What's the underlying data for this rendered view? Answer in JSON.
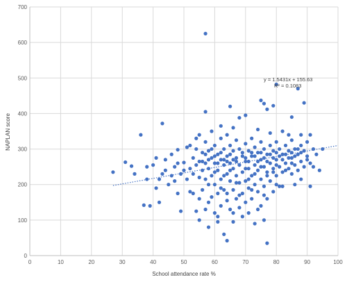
{
  "chart_data": {
    "type": "scatter",
    "title": "",
    "xlabel": "School attendance rate %",
    "ylabel": "NAPLAN score",
    "xlim": [
      0,
      100
    ],
    "ylim": [
      0,
      700
    ],
    "x_ticks": [
      "0",
      "10",
      "20",
      "30",
      "40",
      "50",
      "60",
      "70",
      "80",
      "90",
      "100"
    ],
    "y_ticks": [
      "0",
      "100",
      "200",
      "300",
      "400",
      "500",
      "600",
      "700"
    ],
    "grid": "vertical and horizontal",
    "legend": "none",
    "marker_color": "#4472C4",
    "trendline": {
      "type": "linear",
      "slope": 1.5431,
      "intercept": 155.63,
      "x_range": [
        27,
        100
      ],
      "style": "dotted",
      "equation_label": "y = 1.5431x + 155.63",
      "r2_label": "R² = 0.1083"
    },
    "series": [
      {
        "points": [
          [
            57,
            625
          ],
          [
            80,
            482
          ],
          [
            87,
            470
          ],
          [
            76,
            428
          ],
          [
            89,
            430
          ],
          [
            75,
            437
          ],
          [
            65,
            420
          ],
          [
            57,
            405
          ],
          [
            43,
            372
          ],
          [
            36,
            340
          ],
          [
            79,
            422
          ],
          [
            77,
            412
          ],
          [
            85,
            390
          ],
          [
            68,
            388
          ],
          [
            70,
            395
          ],
          [
            27,
            235
          ],
          [
            31,
            263
          ],
          [
            33,
            252
          ],
          [
            34,
            230
          ],
          [
            37,
            142
          ],
          [
            38,
            215
          ],
          [
            38,
            250
          ],
          [
            39,
            140
          ],
          [
            40,
            255
          ],
          [
            41,
            190
          ],
          [
            42,
            150
          ],
          [
            42,
            215
          ],
          [
            44,
            240
          ],
          [
            44,
            270
          ],
          [
            45,
            200
          ],
          [
            46,
            225
          ],
          [
            46,
            285
          ],
          [
            47,
            250
          ],
          [
            48,
            175
          ],
          [
            48,
            298
          ],
          [
            49,
            230
          ],
          [
            49,
            125
          ],
          [
            50,
            262
          ],
          [
            51,
            215
          ],
          [
            51,
            305
          ],
          [
            52,
            245
          ],
          [
            52,
            180
          ],
          [
            53,
            275
          ],
          [
            53,
            230
          ],
          [
            54,
            300
          ],
          [
            54,
            255
          ],
          [
            54,
            125
          ],
          [
            55,
            340
          ],
          [
            55,
            220
          ],
          [
            55,
            100
          ],
          [
            56,
            290
          ],
          [
            56,
            240
          ],
          [
            56,
            185
          ],
          [
            57,
            320
          ],
          [
            57,
            260
          ],
          [
            57,
            215
          ],
          [
            58,
            295
          ],
          [
            58,
            245
          ],
          [
            58,
            150
          ],
          [
            58,
            80
          ],
          [
            59,
            275
          ],
          [
            59,
            225
          ],
          [
            59,
            350
          ],
          [
            60,
            310
          ],
          [
            60,
            260
          ],
          [
            60,
            200
          ],
          [
            60,
            120
          ],
          [
            61,
            285
          ],
          [
            61,
            240
          ],
          [
            61,
            175
          ],
          [
            61,
            95
          ],
          [
            62,
            330
          ],
          [
            62,
            270
          ],
          [
            62,
            215
          ],
          [
            62,
            140
          ],
          [
            63,
            300
          ],
          [
            63,
            255
          ],
          [
            63,
            185
          ],
          [
            63,
            60
          ],
          [
            64,
            340
          ],
          [
            64,
            280
          ],
          [
            64,
            230
          ],
          [
            64,
            155
          ],
          [
            64,
            42
          ],
          [
            65,
            310
          ],
          [
            65,
            260
          ],
          [
            65,
            210
          ],
          [
            65,
            130
          ],
          [
            66,
            295
          ],
          [
            66,
            245
          ],
          [
            66,
            185
          ],
          [
            66,
            95
          ],
          [
            67,
            325
          ],
          [
            67,
            275
          ],
          [
            67,
            225
          ],
          [
            67,
            160
          ],
          [
            68,
            300
          ],
          [
            68,
            255
          ],
          [
            68,
            205
          ],
          [
            68,
            135
          ],
          [
            69,
            280
          ],
          [
            69,
            235
          ],
          [
            69,
            175
          ],
          [
            70,
            315
          ],
          [
            70,
            265
          ],
          [
            70,
            210
          ],
          [
            70,
            150
          ],
          [
            71,
            295
          ],
          [
            71,
            245
          ],
          [
            71,
            190
          ],
          [
            71,
            120
          ],
          [
            72,
            330
          ],
          [
            72,
            280
          ],
          [
            72,
            225
          ],
          [
            72,
            160
          ],
          [
            73,
            305
          ],
          [
            73,
            255
          ],
          [
            73,
            200
          ],
          [
            73,
            90
          ],
          [
            74,
            290
          ],
          [
            74,
            240
          ],
          [
            74,
            180
          ],
          [
            75,
            320
          ],
          [
            75,
            270
          ],
          [
            75,
            215
          ],
          [
            75,
            140
          ],
          [
            76,
            300
          ],
          [
            76,
            250
          ],
          [
            76,
            195
          ],
          [
            76,
            100
          ],
          [
            77,
            285
          ],
          [
            77,
            235
          ],
          [
            77,
            160
          ],
          [
            77,
            35
          ],
          [
            78,
            310
          ],
          [
            78,
            260
          ],
          [
            78,
            210
          ],
          [
            79,
            295
          ],
          [
            79,
            245
          ],
          [
            79,
            180
          ],
          [
            80,
            320
          ],
          [
            80,
            270
          ],
          [
            80,
            225
          ],
          [
            81,
            300
          ],
          [
            81,
            250
          ],
          [
            82,
            285
          ],
          [
            82,
            235
          ],
          [
            82,
            195
          ],
          [
            83,
            310
          ],
          [
            83,
            260
          ],
          [
            84,
            295
          ],
          [
            84,
            245
          ],
          [
            85,
            325
          ],
          [
            85,
            275
          ],
          [
            85,
            230
          ],
          [
            86,
            300
          ],
          [
            86,
            255
          ],
          [
            87,
            285
          ],
          [
            87,
            240
          ],
          [
            88,
            310
          ],
          [
            88,
            265
          ],
          [
            89,
            295
          ],
          [
            89,
            250
          ],
          [
            90,
            320
          ],
          [
            90,
            280
          ],
          [
            91,
            340
          ],
          [
            91,
            260
          ],
          [
            91,
            195
          ],
          [
            92,
            300
          ],
          [
            92,
            250
          ],
          [
            93,
            285
          ],
          [
            94,
            240
          ],
          [
            95,
            300
          ],
          [
            88,
            215
          ],
          [
            86,
            200
          ],
          [
            81,
            195
          ],
          [
            67,
            265
          ],
          [
            66,
            270
          ],
          [
            65,
            285
          ],
          [
            64,
            265
          ],
          [
            63,
            270
          ],
          [
            62,
            290
          ],
          [
            61,
            260
          ],
          [
            60,
            280
          ],
          [
            59,
            300
          ],
          [
            58,
            270
          ],
          [
            57,
            285
          ],
          [
            56,
            265
          ],
          [
            69,
            290
          ],
          [
            70,
            275
          ],
          [
            71,
            265
          ],
          [
            72,
            290
          ],
          [
            73,
            280
          ],
          [
            74,
            265
          ],
          [
            75,
            290
          ],
          [
            76,
            275
          ],
          [
            77,
            265
          ],
          [
            78,
            285
          ],
          [
            79,
            275
          ],
          [
            80,
            290
          ],
          [
            81,
            280
          ],
          [
            82,
            270
          ],
          [
            83,
            285
          ],
          [
            84,
            275
          ],
          [
            85,
            290
          ],
          [
            86,
            280
          ],
          [
            87,
            300
          ],
          [
            88,
            290
          ],
          [
            84,
            340
          ],
          [
            82,
            350
          ],
          [
            78,
            345
          ],
          [
            74,
            355
          ],
          [
            66,
            360
          ],
          [
            62,
            365
          ],
          [
            54,
            330
          ],
          [
            52,
            310
          ],
          [
            48,
            260
          ],
          [
            47,
            210
          ],
          [
            43,
            230
          ],
          [
            41,
            275
          ],
          [
            50,
            240
          ],
          [
            55,
            265
          ],
          [
            60,
            235
          ],
          [
            65,
            240
          ],
          [
            70,
            245
          ],
          [
            75,
            250
          ],
          [
            80,
            255
          ],
          [
            85,
            260
          ],
          [
            90,
            270
          ],
          [
            63,
            225
          ],
          [
            67,
            205
          ],
          [
            71,
            215
          ],
          [
            73,
            230
          ],
          [
            77,
            225
          ],
          [
            79,
            235
          ],
          [
            83,
            240
          ],
          [
            68,
            170
          ],
          [
            62,
            190
          ],
          [
            58,
            200
          ],
          [
            74,
            130
          ],
          [
            69,
            110
          ],
          [
            66,
            120
          ],
          [
            61,
            110
          ],
          [
            57,
            130
          ],
          [
            55,
            160
          ],
          [
            53,
            175
          ],
          [
            59,
            165
          ],
          [
            64,
            175
          ],
          [
            72,
            185
          ],
          [
            76,
            170
          ],
          [
            80,
            200
          ],
          [
            88,
            340
          ]
        ]
      }
    ]
  }
}
